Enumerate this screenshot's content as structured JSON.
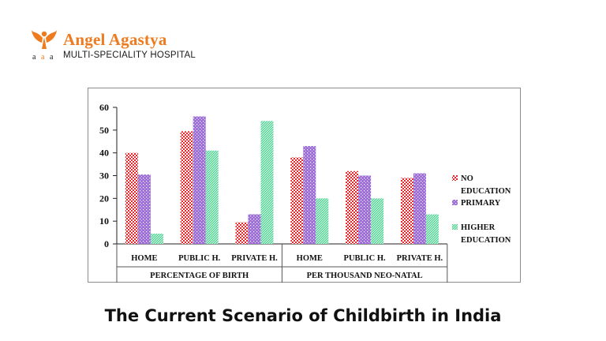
{
  "header": {
    "brand_name": "Angel Agastya",
    "tagline": "MULTI-SPECIALITY HOSPITAL",
    "logo_icon": "angel-wings-logo",
    "brand_color": "#ee7b1e"
  },
  "caption": "The Current Scenario of Childbirth in India",
  "chart_data": {
    "type": "bar",
    "title": "",
    "xlabel": "",
    "ylabel": "",
    "ylim": [
      0,
      60
    ],
    "yticks": [
      0,
      10,
      20,
      30,
      40,
      50,
      60
    ],
    "grid": false,
    "legend_position": "right",
    "categories": [
      "HOME",
      "PUBLIC H.",
      "PRIVATE H.",
      "HOME",
      "PUBLIC H.",
      "PRIVATE H."
    ],
    "groups": [
      {
        "label": "PERCENTAGE OF BIRTH",
        "span": 3
      },
      {
        "label": "PER THOUSAND NEO-NATAL",
        "span": 3
      }
    ],
    "series": [
      {
        "name": "NO EDUCATION",
        "legend_lines": [
          "NO",
          "EDUCATION"
        ],
        "color": "#e8262a",
        "values": [
          40,
          49.5,
          9.5,
          38,
          32,
          29
        ]
      },
      {
        "name": "PRIMARY",
        "legend_lines": [
          "PRIMARY"
        ],
        "color": "#9f6fd9",
        "values": [
          30.5,
          56,
          13,
          43,
          30,
          31
        ]
      },
      {
        "name": "HIGHER EDUCATION",
        "legend_lines": [
          "HIGHER",
          "EDUCATION"
        ],
        "color": "#3fcf8a",
        "values": [
          4.5,
          41,
          54,
          20,
          20,
          13
        ]
      }
    ]
  }
}
